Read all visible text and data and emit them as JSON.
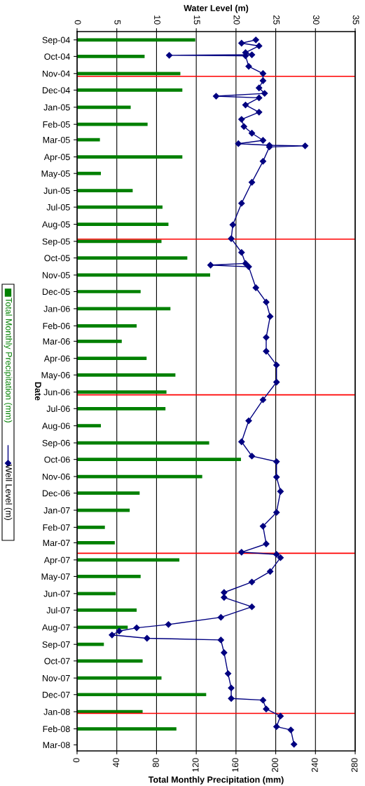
{
  "chart_data": {
    "type": "bar",
    "orientation": "horizontal",
    "x": [
      "2004-09",
      "2004-10",
      "2004-11",
      "2004-12",
      "2005-01",
      "2005-02",
      "2005-03",
      "2005-04",
      "2005-05",
      "2005-06",
      "2005-07",
      "2005-08",
      "2005-09",
      "2005-10",
      "2005-11",
      "2005-12",
      "2006-01",
      "2006-02",
      "2006-03",
      "2006-04",
      "2006-05",
      "2006-06",
      "2006-07",
      "2006-08",
      "2006-09",
      "2006-10",
      "2006-11",
      "2006-12",
      "2007-01",
      "2007-02",
      "2007-03",
      "2007-04",
      "2007-05",
      "2007-06",
      "2007-07",
      "2007-08",
      "2007-09",
      "2007-10",
      "2007-11",
      "2007-12",
      "2008-01",
      "2008-02"
    ],
    "series": [
      {
        "name": "Total Monthly Precipitation (mm)",
        "color": "#008000",
        "values": [
          119,
          68,
          104,
          106,
          54,
          71,
          23,
          106,
          24,
          56,
          86,
          92,
          85,
          111,
          134,
          64,
          94,
          60,
          45,
          70,
          99,
          90,
          89,
          24,
          133,
          165,
          126,
          63,
          53,
          28,
          38,
          103,
          64,
          39,
          60,
          51,
          27,
          66,
          85,
          130,
          66,
          100
        ]
      },
      {
        "name": "Well Level (m)",
        "type": "line",
        "axis": "x2",
        "color": "#000080",
        "marker": "diamond",
        "x": [
          "2004-09-01",
          "2004-09-07",
          "2004-09-12",
          "2004-09-24",
          "2004-09-28",
          "2004-09-29",
          "2004-09-30",
          "2004-10-19",
          "2004-11-01",
          "2004-11-14",
          "2004-11-27",
          "2004-12-07",
          "2004-12-12",
          "2004-12-15",
          "2004-12-28",
          "2005-01-10",
          "2005-01-23",
          "2005-02-05",
          "2005-02-17",
          "2005-03-02",
          "2005-03-08",
          "2005-03-11",
          "2005-03-12",
          "2005-03-14",
          "2005-04-09",
          "2005-05-17",
          "2005-06-24",
          "2005-08-02",
          "2005-08-27",
          "2005-09-21",
          "2005-10-11",
          "2005-10-14",
          "2005-10-17",
          "2005-11-24",
          "2005-12-20",
          "2006-01-15",
          "2006-02-22",
          "2006-03-19",
          "2006-04-13",
          "2006-05-14",
          "2006-06-15",
          "2006-07-23",
          "2006-08-30",
          "2006-09-25",
          "2006-10-05",
          "2006-11-02",
          "2006-11-28",
          "2007-01-05",
          "2007-01-30",
          "2007-03-03",
          "2007-03-18",
          "2007-03-22",
          "2007-03-28",
          "2007-04-22",
          "2007-05-11",
          "2007-05-30",
          "2007-06-08",
          "2007-06-25",
          "2007-07-14",
          "2007-07-27",
          "2007-08-02",
          "2007-08-08",
          "2007-08-15",
          "2007-08-21",
          "2007-08-24",
          "2007-09-16",
          "2007-10-24",
          "2007-11-19",
          "2007-12-08",
          "2007-12-11",
          "2007-12-27",
          "2008-01-09",
          "2008-01-28",
          "2008-02-03",
          "2008-02-29"
        ],
        "values": [
          22.5,
          20.7,
          22.9,
          21.2,
          22,
          11.6,
          21.2,
          21.6,
          23.4,
          23.4,
          22.9,
          23.6,
          17.5,
          22.9,
          21.2,
          22.9,
          20.7,
          21,
          22,
          23.4,
          20.3,
          24.2,
          28.7,
          24.2,
          23.4,
          22,
          20.7,
          19.6,
          19.4,
          20.7,
          21.2,
          16.8,
          21.6,
          22.5,
          23.8,
          24.3,
          23.8,
          23.8,
          25.1,
          25.1,
          23.4,
          21.6,
          20.7,
          22,
          25.1,
          25.1,
          25.6,
          25.1,
          23.4,
          23.8,
          20.7,
          25.1,
          25.6,
          24.3,
          22,
          18.5,
          18.5,
          22,
          18.1,
          11.5,
          7.5,
          5.3,
          4.4,
          8.8,
          18.1,
          18.5,
          19,
          19.4,
          19.4,
          23.4,
          23.8,
          25.6,
          25.1,
          26.9,
          27.3
        ]
      }
    ],
    "xlabel": "Total Monthly Precipitation (mm)",
    "x2label": "Water Level (m)",
    "ylabel": "Date",
    "xlim": [
      0,
      280
    ],
    "xticks": [
      0,
      40,
      80,
      120,
      160,
      200,
      240,
      280
    ],
    "x2lim": [
      0,
      35
    ],
    "x2ticks": [
      0,
      5,
      10,
      15,
      20,
      25,
      30,
      35
    ],
    "ylim": [
      "2008-03-12",
      "2004-08-17"
    ],
    "yticks": [
      {
        "value": "2004-09",
        "label": "Sep-04"
      },
      {
        "value": "2004-10",
        "label": "Oct-04"
      },
      {
        "value": "2004-11",
        "label": "Nov-04"
      },
      {
        "value": "2004-12",
        "label": "Dec-04"
      },
      {
        "value": "2005-01",
        "label": "Jan-05"
      },
      {
        "value": "2005-02",
        "label": "Feb-05"
      },
      {
        "value": "2005-03",
        "label": "Mar-05"
      },
      {
        "value": "2005-04",
        "label": "Apr-05"
      },
      {
        "value": "2005-05",
        "label": "May-05"
      },
      {
        "value": "2005-06",
        "label": "Jun-05"
      },
      {
        "value": "2005-07",
        "label": "Jul-05"
      },
      {
        "value": "2005-08",
        "label": "Aug-05"
      },
      {
        "value": "2005-09",
        "label": "Sep-05"
      },
      {
        "value": "2005-10",
        "label": "Oct-05"
      },
      {
        "value": "2005-11",
        "label": "Nov-05"
      },
      {
        "value": "2005-12",
        "label": "Dec-05"
      },
      {
        "value": "2006-01",
        "label": "Jan-06"
      },
      {
        "value": "2006-02",
        "label": "Feb-06"
      },
      {
        "value": "2006-03",
        "label": "Mar-06"
      },
      {
        "value": "2006-04",
        "label": "Apr-06"
      },
      {
        "value": "2006-05",
        "label": "May-06"
      },
      {
        "value": "2006-06",
        "label": "Jun-06"
      },
      {
        "value": "2006-07",
        "label": "Jul-06"
      },
      {
        "value": "2006-08",
        "label": "Aug-06"
      },
      {
        "value": "2006-09",
        "label": "Sep-06"
      },
      {
        "value": "2006-10",
        "label": "Oct-06"
      },
      {
        "value": "2006-11",
        "label": "Nov-06"
      },
      {
        "value": "2006-12",
        "label": "Dec-06"
      },
      {
        "value": "2007-01",
        "label": "Jan-07"
      },
      {
        "value": "2007-02",
        "label": "Feb-07"
      },
      {
        "value": "2007-03",
        "label": "Mar-07"
      },
      {
        "value": "2007-04",
        "label": "Apr-07"
      },
      {
        "value": "2007-05",
        "label": "May-07"
      },
      {
        "value": "2007-06",
        "label": "Jun-07"
      },
      {
        "value": "2007-07",
        "label": "Jul-07"
      },
      {
        "value": "2007-08",
        "label": "Aug-07"
      },
      {
        "value": "2007-09",
        "label": "Sep-07"
      },
      {
        "value": "2007-10",
        "label": "Oct-07"
      },
      {
        "value": "2007-11",
        "label": "Nov-07"
      },
      {
        "value": "2007-12",
        "label": "Dec-07"
      },
      {
        "value": "2008-01",
        "label": "Jan-08"
      },
      {
        "value": "2008-02",
        "label": "Feb-08"
      },
      {
        "value": "2008-03",
        "label": "Mar-08"
      }
    ],
    "ref_lines": [
      {
        "axis": "y",
        "value": "2004-11-06",
        "color": "#ff0000"
      },
      {
        "axis": "y",
        "value": "2005-08-28",
        "color": "#ff0000"
      },
      {
        "axis": "y",
        "value": "2006-06-06",
        "color": "#ff0000"
      },
      {
        "axis": "y",
        "value": "2007-03-20",
        "color": "#ff0000"
      },
      {
        "axis": "y",
        "value": "2008-01-04",
        "color": "#ff0000"
      }
    ],
    "grid": "x",
    "legend": "left"
  }
}
